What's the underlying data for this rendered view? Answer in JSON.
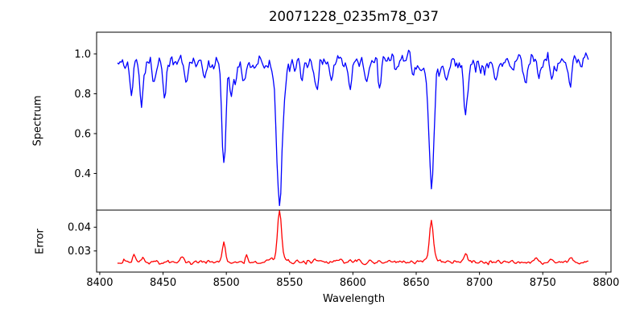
{
  "figure": {
    "background": "#ffffff",
    "frame_color": "#000000",
    "text_color": "#000000"
  },
  "chart_data": {
    "type": "line",
    "title": "20071228_0235m78_037",
    "xlabel": "Wavelength",
    "x": {
      "lim": [
        8397.5,
        8803.9
      ],
      "data_start": 8414,
      "data_end": 8786,
      "step": 1.0,
      "ticks": [
        8400,
        8450,
        8500,
        8550,
        8600,
        8650,
        8700,
        8750,
        8800
      ],
      "tick_labels": [
        "8400",
        "8450",
        "8500",
        "8550",
        "8600",
        "8650",
        "8700",
        "8750",
        "8800"
      ]
    },
    "panels": [
      {
        "name": "spectrum",
        "ylabel": "Spectrum",
        "color": "#0000ff",
        "ylim": [
          0.216,
          1.109
        ],
        "yticks": [
          0.4,
          0.6,
          0.8,
          1.0
        ],
        "ytick_labels": [
          "0.4",
          "0.6",
          "0.8",
          "1.0"
        ],
        "mode": "absorption",
        "baseline": 0.958,
        "noise": {
          "sigma": 0.03,
          "seed": 20071228,
          "mix": [
            0.62,
            0.38
          ]
        },
        "features_comment": "absorption lines: [center_wavelength, depth, sigma]; deep lines are Ca II triplet 8498/8542/8662 and Fe 8689",
        "features": [
          [
            8425,
            0.16,
            1.2
          ],
          [
            8433,
            0.24,
            1.2
          ],
          [
            8443,
            0.1,
            1.0
          ],
          [
            8451,
            0.15,
            1.3
          ],
          [
            8468,
            0.12,
            1.2
          ],
          [
            8484,
            0.08,
            1.0
          ],
          [
            8498,
            0.44,
            1.6
          ],
          [
            8498,
            0.05,
            4.5
          ],
          [
            8505,
            0.13,
            1.5
          ],
          [
            8514,
            0.1,
            1.2
          ],
          [
            8542,
            0.62,
            2.1
          ],
          [
            8542,
            0.08,
            6.0
          ],
          [
            8560,
            0.1,
            1.2
          ],
          [
            8571,
            0.14,
            1.5
          ],
          [
            8583,
            0.11,
            1.2
          ],
          [
            8598,
            0.13,
            1.3
          ],
          [
            8611,
            0.11,
            1.2
          ],
          [
            8621,
            0.13,
            1.3
          ],
          [
            8648,
            0.09,
            1.2
          ],
          [
            8662,
            0.56,
            1.9
          ],
          [
            8662,
            0.07,
            5.0
          ],
          [
            8674,
            0.1,
            1.2
          ],
          [
            8689,
            0.26,
            1.6
          ],
          [
            8702,
            0.07,
            1.0
          ],
          [
            8713,
            0.08,
            1.2
          ],
          [
            8727,
            0.07,
            1.0
          ],
          [
            8736,
            0.08,
            1.2
          ],
          [
            8747,
            0.07,
            1.0
          ],
          [
            8757,
            0.08,
            1.2
          ],
          [
            8772,
            0.09,
            1.2
          ]
        ]
      },
      {
        "name": "error",
        "ylabel": "Error",
        "color": "#ff0000",
        "ylim": [
          0.0211,
          0.0472
        ],
        "yticks": [
          0.03,
          0.04
        ],
        "ytick_labels": [
          "0.03",
          "0.04"
        ],
        "mode": "emission",
        "baseline": 0.0253,
        "noise": {
          "sigma": 0.00055,
          "seed": 235,
          "mix": [
            0.62,
            0.38
          ]
        },
        "features_comment": "error spikes at line centers: [center_wavelength, height, sigma]",
        "features": [
          [
            8427,
            0.003,
            1.2
          ],
          [
            8434,
            0.0022,
            1.0
          ],
          [
            8465,
            0.0026,
            1.2
          ],
          [
            8498,
            0.0085,
            1.3
          ],
          [
            8516,
            0.0024,
            1.0
          ],
          [
            8542,
            0.0185,
            1.5
          ],
          [
            8542,
            0.0028,
            4.0
          ],
          [
            8570,
            0.0012,
            1.2
          ],
          [
            8590,
            0.0012,
            1.0
          ],
          [
            8604,
            0.0012,
            1.0
          ],
          [
            8662,
            0.0148,
            1.4
          ],
          [
            8662,
            0.0024,
            4.0
          ],
          [
            8689,
            0.003,
            1.3
          ],
          [
            8715,
            0.0012,
            1.0
          ],
          [
            8745,
            0.0015,
            1.2
          ],
          [
            8757,
            0.0012,
            1.0
          ],
          [
            8772,
            0.002,
            1.2
          ]
        ]
      }
    ]
  }
}
